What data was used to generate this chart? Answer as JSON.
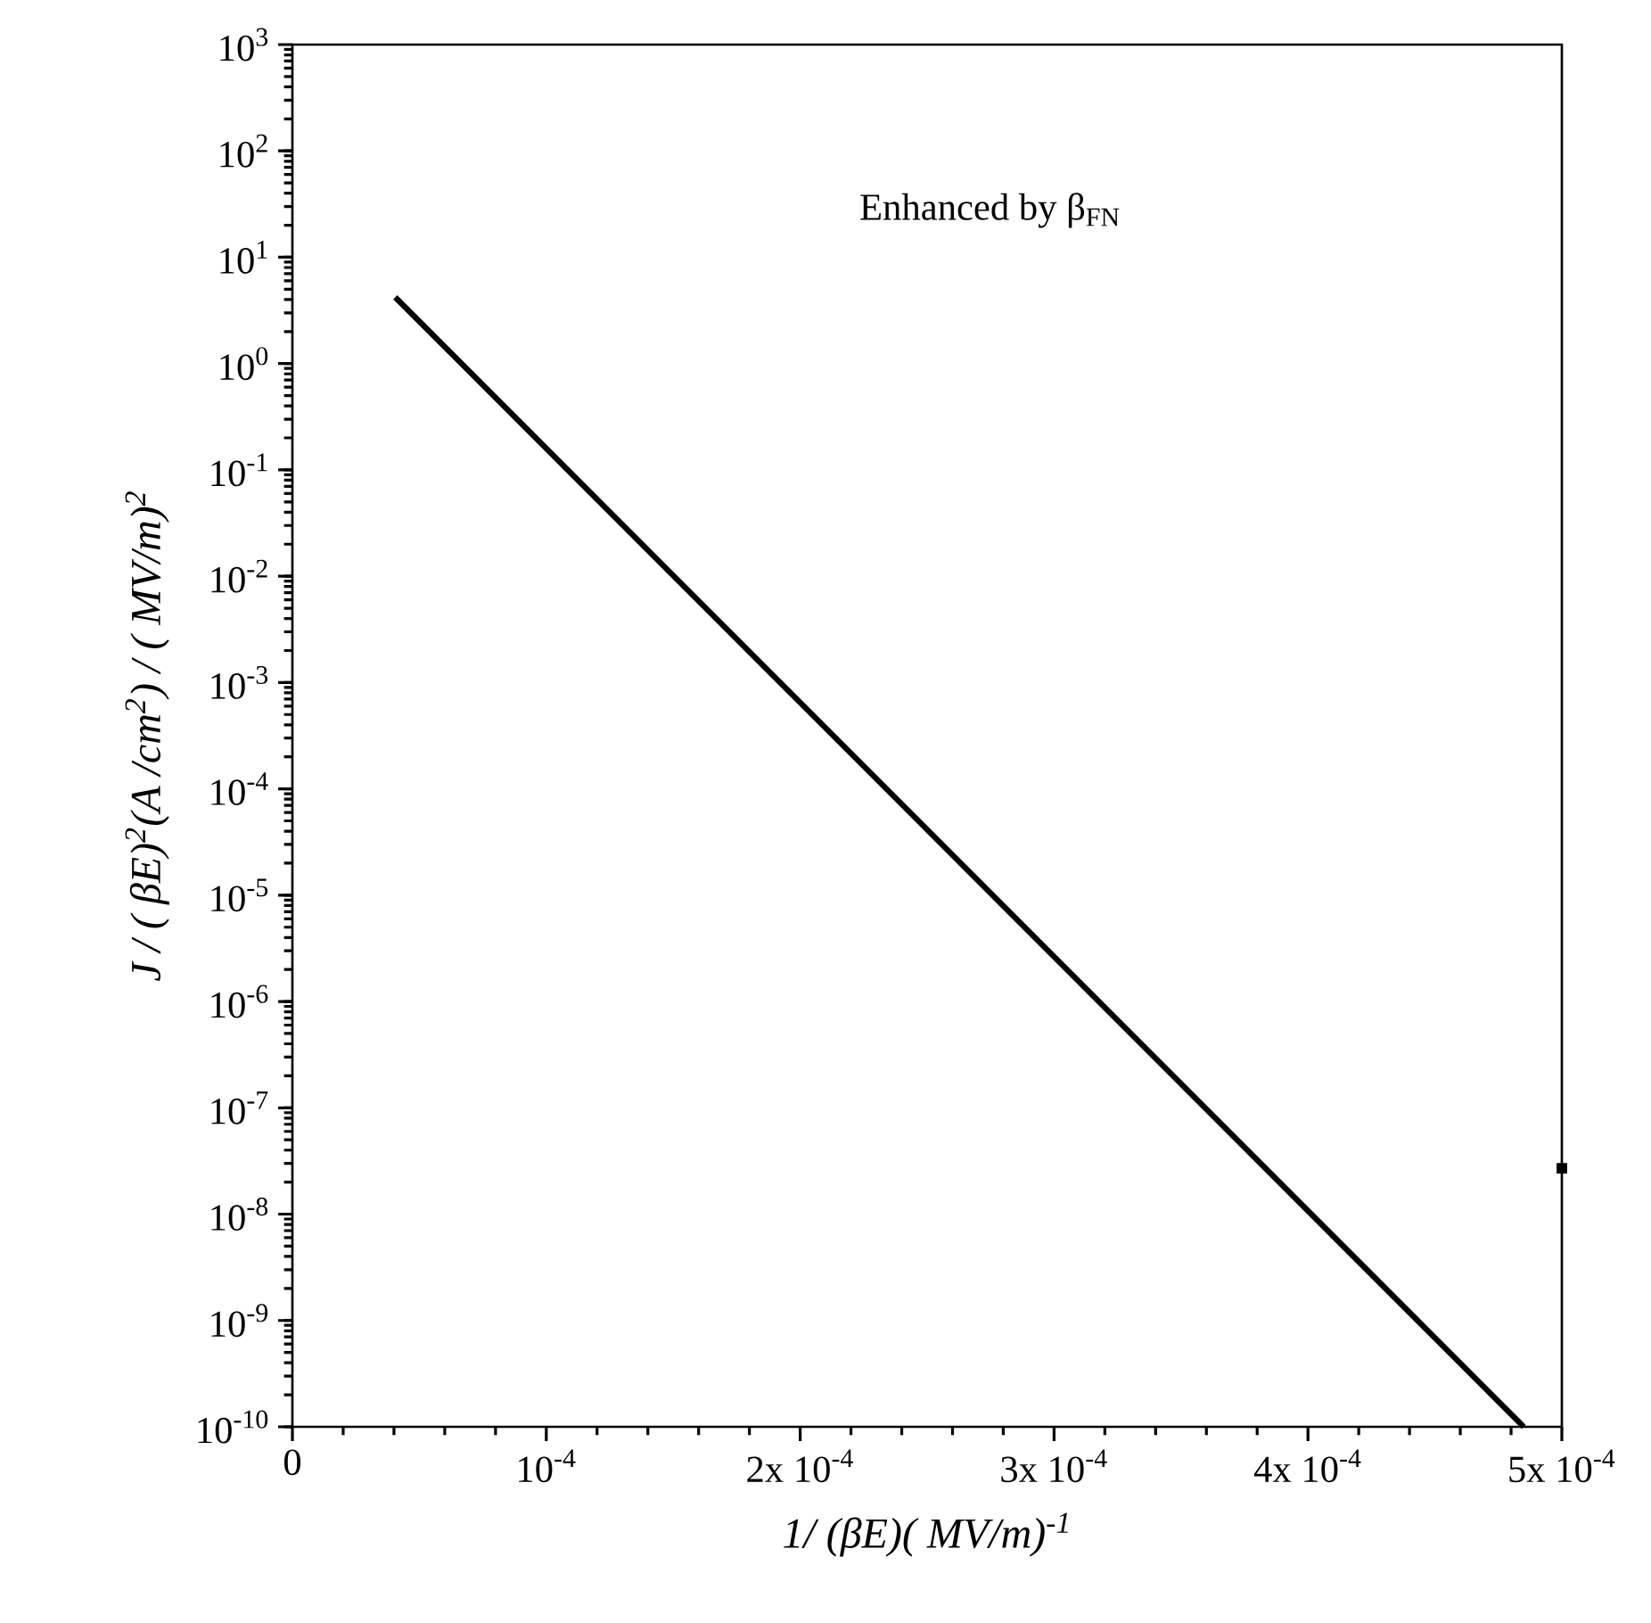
{
  "chart_data": {
    "type": "line",
    "xlabel": "1/ (βE)( MV/m)$^{-1}$",
    "ylabel": "J / ( βE)$^{2}$(A /cm$^{2}$) / ( MV/m)$^{2}$",
    "annotations": [
      "Enhanced by β$_{FN}$"
    ],
    "log": "y",
    "xlim": [
      0,
      0.0005
    ],
    "xticks": [
      0,
      {
        "value": 0.0001,
        "label": "10$^{-4}$"
      },
      {
        "value": 0.0002,
        "label": "2x 10$^{-4}$"
      },
      {
        "value": 0.0003,
        "label": "3x 10$^{-4}$"
      },
      {
        "value": 0.0004,
        "label": "4x 10$^{-4}$"
      },
      {
        "value": 0.0005,
        "label": "5x 10$^{-4}$"
      }
    ],
    "ylim": [
      1e-10,
      1000
    ],
    "yticks": [
      {
        "value": 1e-10,
        "label": "10$^{-10}$"
      },
      {
        "value": 1e-09,
        "label": "10$^{-9}$"
      },
      {
        "value": 1e-08,
        "label": "10$^{-8}$"
      },
      {
        "value": 1e-07,
        "label": "10$^{-7}$"
      },
      {
        "value": 1e-06,
        "label": "10$^{-6}$"
      },
      {
        "value": 1e-05,
        "label": "10$^{-5}$"
      },
      {
        "value": 0.0001,
        "label": "10$^{-4}$"
      },
      {
        "value": 0.001,
        "label": "10$^{-3}$"
      },
      {
        "value": 0.01,
        "label": "10$^{-2}$"
      },
      {
        "value": 0.1,
        "label": "10$^{-1}$"
      },
      {
        "value": 1,
        "label": "10$^{0}$"
      },
      {
        "value": 10,
        "label": "10$^{1}$"
      },
      {
        "value": 100,
        "label": "10$^{2}$"
      },
      {
        "value": 1000,
        "label": "10$^{3}$"
      }
    ],
    "grid": false,
    "series": [
      {
        "color": "#000000",
        "x": [
          4.05e-05,
          0.000485
        ],
        "values": [
          4.2,
          1e-10
        ]
      },
      {
        "type": "scatter",
        "color": "#000000",
        "marker": "square",
        "x": [
          0.0005
        ],
        "values": [
          2.7e-08
        ]
      }
    ]
  }
}
